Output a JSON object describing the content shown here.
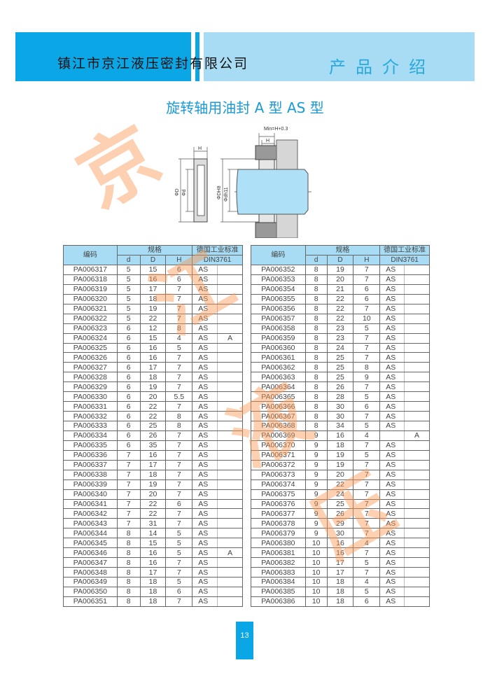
{
  "header": {
    "company": "镇江市京江液压密封有限公司",
    "section": "产品介绍"
  },
  "title": "旋转轴用油封 A 型   AS 型",
  "diagram": {
    "labels": {
      "h": "H",
      "D": "ΦD",
      "d": "Φd",
      "min": "Min=H+0.3",
      "DH8": "ΦDH8",
      "dh11": "Φdh11"
    }
  },
  "table": {
    "headers": {
      "code": "编码",
      "spec": "规格",
      "d": "d",
      "D": "D",
      "H": "H",
      "std": "德国工业标准",
      "din": "DIN3761"
    },
    "left": [
      [
        "PA006317",
        "5",
        "15",
        "6",
        "AS",
        ""
      ],
      [
        "PA006318",
        "5",
        "16",
        "6",
        "AS",
        ""
      ],
      [
        "PA006319",
        "5",
        "17",
        "7",
        "AS",
        ""
      ],
      [
        "PA006320",
        "5",
        "18",
        "7",
        "AS",
        ""
      ],
      [
        "PA006321",
        "5",
        "19",
        "7",
        "AS",
        ""
      ],
      [
        "PA006322",
        "5",
        "22",
        "7",
        "AS",
        ""
      ],
      [
        "PA006323",
        "6",
        "12",
        "8",
        "AS",
        ""
      ],
      [
        "PA006324",
        "6",
        "15",
        "4",
        "AS",
        "A"
      ],
      [
        "PA006325",
        "6",
        "16",
        "5",
        "AS",
        ""
      ],
      [
        "PA006326",
        "6",
        "16",
        "7",
        "AS",
        ""
      ],
      [
        "PA006327",
        "6",
        "17",
        "7",
        "AS",
        ""
      ],
      [
        "PA006328",
        "6",
        "18",
        "7",
        "AS",
        ""
      ],
      [
        "PA006329",
        "6",
        "19",
        "7",
        "AS",
        ""
      ],
      [
        "PA006330",
        "6",
        "20",
        "5.5",
        "AS",
        ""
      ],
      [
        "PA006331",
        "6",
        "22",
        "7",
        "AS",
        ""
      ],
      [
        "PA006332",
        "6",
        "22",
        "8",
        "AS",
        ""
      ],
      [
        "PA006333",
        "6",
        "25",
        "8",
        "AS",
        ""
      ],
      [
        "PA006334",
        "6",
        "26",
        "7",
        "AS",
        ""
      ],
      [
        "PA006335",
        "6",
        "35",
        "7",
        "AS",
        ""
      ],
      [
        "PA006336",
        "7",
        "16",
        "7",
        "AS",
        ""
      ],
      [
        "PA006337",
        "7",
        "17",
        "7",
        "AS",
        ""
      ],
      [
        "PA006338",
        "7",
        "18",
        "7",
        "AS",
        ""
      ],
      [
        "PA006339",
        "7",
        "19",
        "7",
        "AS",
        ""
      ],
      [
        "PA006340",
        "7",
        "20",
        "7",
        "AS",
        ""
      ],
      [
        "PA006341",
        "7",
        "22",
        "6",
        "AS",
        ""
      ],
      [
        "PA006342",
        "7",
        "22",
        "7",
        "AS",
        ""
      ],
      [
        "PA006343",
        "7",
        "31",
        "7",
        "AS",
        ""
      ],
      [
        "PA006344",
        "8",
        "14",
        "5",
        "AS",
        ""
      ],
      [
        "PA006345",
        "8",
        "15",
        "5",
        "AS",
        ""
      ],
      [
        "PA006346",
        "8",
        "16",
        "5",
        "AS",
        "A"
      ],
      [
        "PA006347",
        "8",
        "16",
        "7",
        "AS",
        ""
      ],
      [
        "PA006348",
        "8",
        "17",
        "7",
        "AS",
        ""
      ],
      [
        "PA006349",
        "8",
        "18",
        "5",
        "AS",
        ""
      ],
      [
        "PA006350",
        "8",
        "18",
        "6",
        "AS",
        ""
      ],
      [
        "PA006351",
        "8",
        "18",
        "7",
        "AS",
        ""
      ]
    ],
    "right": [
      [
        "PA006352",
        "8",
        "19",
        "7",
        "AS",
        ""
      ],
      [
        "PA006353",
        "8",
        "20",
        "7",
        "AS",
        ""
      ],
      [
        "PA006354",
        "8",
        "21",
        "6",
        "AS",
        ""
      ],
      [
        "PA006355",
        "8",
        "22",
        "6",
        "AS",
        ""
      ],
      [
        "PA006356",
        "8",
        "22",
        "7",
        "AS",
        ""
      ],
      [
        "PA006357",
        "8",
        "22",
        "10",
        "AS",
        ""
      ],
      [
        "PA006358",
        "8",
        "23",
        "5",
        "AS",
        ""
      ],
      [
        "PA006359",
        "8",
        "23",
        "7",
        "AS",
        ""
      ],
      [
        "PA006360",
        "8",
        "24",
        "7",
        "AS",
        ""
      ],
      [
        "PA006361",
        "8",
        "25",
        "7",
        "AS",
        ""
      ],
      [
        "PA006362",
        "8",
        "25",
        "8",
        "AS",
        ""
      ],
      [
        "PA006363",
        "8",
        "25",
        "9",
        "AS",
        ""
      ],
      [
        "PA006364",
        "8",
        "26",
        "7",
        "AS",
        ""
      ],
      [
        "PA006365",
        "8",
        "28",
        "5",
        "AS",
        ""
      ],
      [
        "PA006366",
        "8",
        "30",
        "6",
        "AS",
        ""
      ],
      [
        "PA006367",
        "8",
        "30",
        "7",
        "AS",
        ""
      ],
      [
        "PA006368",
        "8",
        "34",
        "5",
        "AS",
        ""
      ],
      [
        "PA006369",
        "9",
        "16",
        "4",
        "",
        "A"
      ],
      [
        "PA006370",
        "9",
        "18",
        "7",
        "AS",
        ""
      ],
      [
        "PA006371",
        "9",
        "19",
        "5",
        "AS",
        ""
      ],
      [
        "PA006372",
        "9",
        "19",
        "7",
        "AS",
        ""
      ],
      [
        "PA006373",
        "9",
        "20",
        "7",
        "AS",
        ""
      ],
      [
        "PA006374",
        "9",
        "22",
        "7",
        "AS",
        ""
      ],
      [
        "PA006375",
        "9",
        "24",
        "7",
        "AS",
        ""
      ],
      [
        "PA006376",
        "9",
        "25",
        "7",
        "AS",
        ""
      ],
      [
        "PA006377",
        "9",
        "26",
        "7",
        "AS",
        ""
      ],
      [
        "PA006378",
        "9",
        "29",
        "7",
        "AS",
        ""
      ],
      [
        "PA006379",
        "9",
        "30",
        "7",
        "AS",
        ""
      ],
      [
        "PA006380",
        "10",
        "16",
        "4",
        "AS",
        ""
      ],
      [
        "PA006381",
        "10",
        "16",
        "7",
        "AS",
        ""
      ],
      [
        "PA006382",
        "10",
        "17",
        "5",
        "AS",
        ""
      ],
      [
        "PA006383",
        "10",
        "17",
        "7",
        "AS",
        ""
      ],
      [
        "PA006384",
        "10",
        "18",
        "4",
        "AS",
        ""
      ],
      [
        "PA006385",
        "10",
        "18",
        "5",
        "AS",
        ""
      ],
      [
        "PA006386",
        "10",
        "18",
        "6",
        "AS",
        ""
      ]
    ]
  },
  "watermark": [
    "京",
    "江",
    "液",
    "压"
  ],
  "page_number": "13",
  "colors": {
    "primary": "#0aa6e6",
    "light": "#a8dcf4",
    "watermark": "#f89650"
  }
}
